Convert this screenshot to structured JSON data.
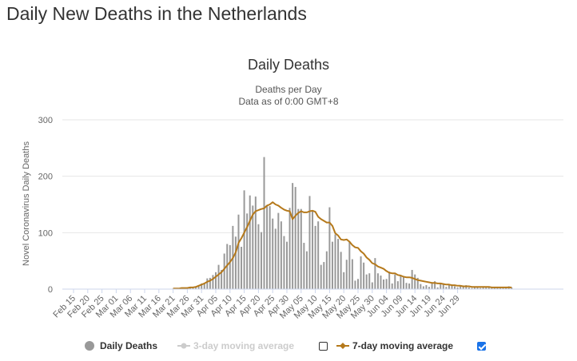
{
  "page": {
    "title": "Daily New Deaths in the Netherlands"
  },
  "colors": {
    "bar": "#999999",
    "ma7": "#b5791b",
    "ma3_disabled": "#cccccc",
    "grid": "#e6e6e6",
    "checkbox_on": "#1a73e8"
  },
  "chart_data": {
    "type": "bar",
    "title": "Daily Deaths",
    "subtitle_line1": "Deaths per Day",
    "subtitle_line2": "Data as of 0:00 GMT+8",
    "ylabel": "Novel Coronavirus Daily Deaths",
    "ylim": [
      0,
      300
    ],
    "yticks": [
      "0",
      "100",
      "200",
      "300"
    ],
    "xtick_labels": [
      "Feb 15",
      "Feb 20",
      "Feb 25",
      "Mar 01",
      "Mar 06",
      "Mar 11",
      "Mar 16",
      "Mar 21",
      "Mar 26",
      "Mar 31",
      "Apr 05",
      "Apr 10",
      "Apr 15",
      "Apr 20",
      "Apr 25",
      "Apr 30",
      "May 05",
      "May 10",
      "May 15",
      "May 20",
      "May 25",
      "May 30",
      "Jun 04",
      "Jun 09",
      "Jun 14",
      "Jun 19",
      "Jun 24",
      "Jun 29"
    ],
    "x_start": "Feb 15",
    "grid": true,
    "series": [
      {
        "name": "Daily Deaths",
        "type": "bar",
        "values": [
          0,
          0,
          0,
          0,
          0,
          0,
          0,
          0,
          0,
          0,
          0,
          0,
          0,
          0,
          0,
          0,
          0,
          0,
          0,
          0,
          0,
          0,
          0,
          0,
          0,
          0,
          0,
          0,
          0,
          0,
          0,
          0,
          0,
          0,
          0,
          1,
          0,
          0,
          2,
          1,
          1,
          2,
          4,
          5,
          6,
          10,
          10,
          19,
          20,
          25,
          30,
          43,
          34,
          63,
          80,
          78,
          112,
          93,
          132,
          75,
          175,
          134,
          166,
          148,
          164,
          115,
          101,
          234,
          148,
          147,
          125,
          107,
          135,
          120,
          94,
          84,
          144,
          188,
          181,
          142,
          142,
          82,
          67,
          165,
          138,
          112,
          120,
          43,
          48,
          67,
          145,
          84,
          97,
          89,
          66,
          30,
          52,
          85,
          53,
          15,
          18,
          58,
          47,
          26,
          28,
          12,
          55,
          28,
          24,
          17,
          18,
          31,
          10,
          26,
          14,
          24,
          21,
          11,
          10,
          34,
          26,
          20,
          9,
          5,
          7,
          4,
          10,
          14,
          3,
          11,
          10,
          4,
          8,
          7,
          5,
          3,
          5,
          6,
          7,
          3,
          2,
          4,
          3,
          2,
          5,
          3,
          3,
          2,
          4,
          4,
          2,
          2,
          4,
          5,
          3
        ]
      },
      {
        "name": "7-day moving average",
        "type": "line",
        "values": [
          null,
          null,
          null,
          null,
          null,
          null,
          null,
          null,
          null,
          null,
          null,
          null,
          null,
          null,
          null,
          null,
          null,
          null,
          null,
          null,
          null,
          null,
          null,
          null,
          null,
          null,
          null,
          null,
          null,
          null,
          null,
          null,
          null,
          null,
          null,
          1,
          1,
          1,
          2,
          2,
          2,
          3,
          3,
          4,
          6,
          8,
          10,
          13,
          15,
          18,
          22,
          26,
          30,
          36,
          42,
          48,
          55,
          65,
          82,
          90,
          100,
          110,
          121,
          132,
          138,
          140,
          142,
          143,
          148,
          150,
          154,
          150,
          148,
          144,
          141,
          139,
          138,
          124,
          130,
          135,
          138,
          136,
          136,
          138,
          139,
          137,
          128,
          124,
          121,
          118,
          118,
          112,
          99,
          95,
          88,
          87,
          88,
          84,
          78,
          74,
          73,
          67,
          63,
          56,
          52,
          46,
          44,
          40,
          38,
          36,
          32,
          29,
          28,
          28,
          25,
          24,
          22,
          21,
          21,
          20,
          18,
          16,
          15,
          14,
          13,
          12,
          11,
          11,
          10,
          10,
          9,
          8,
          8,
          7,
          7,
          6,
          6,
          5,
          5,
          5,
          4,
          4,
          4,
          4,
          4,
          4,
          4,
          3,
          3,
          3,
          3,
          3,
          3,
          3,
          3
        ]
      }
    ]
  },
  "legend": {
    "items": [
      {
        "label": "Daily Deaths"
      },
      {
        "label": "3-day moving average"
      },
      {
        "label": "7-day moving average"
      }
    ]
  }
}
